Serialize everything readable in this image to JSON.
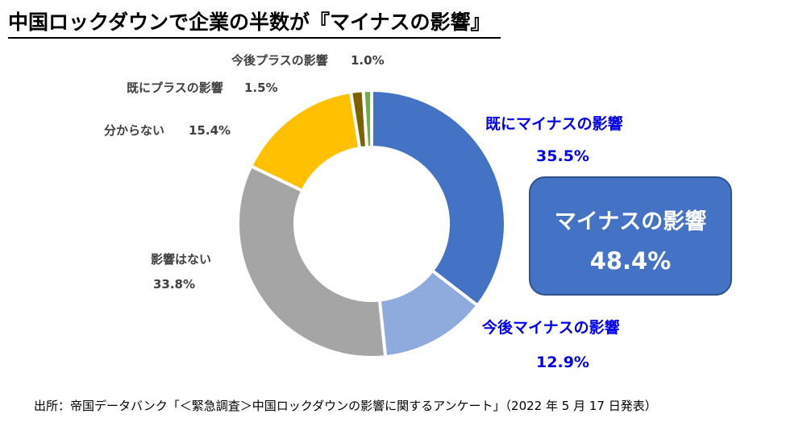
{
  "title": "中国ロックダウンで企業の半数が『マイナスの影響』",
  "chart_data": {
    "type": "pie",
    "style": "donut",
    "slices": [
      {
        "label": "既にマイナスの影響",
        "value": 35.5,
        "value_text": "35.5%",
        "color": "#4472c4"
      },
      {
        "label": "今後マイナスの影響",
        "value": 12.9,
        "value_text": "12.9%",
        "color": "#8faadc"
      },
      {
        "label": "影響はない",
        "value": 33.8,
        "value_text": "33.8%",
        "color": "#a5a5a5"
      },
      {
        "label": "分からない",
        "value": 15.4,
        "value_text": "15.4%",
        "color": "#ffc000"
      },
      {
        "label": "既にプラスの影響",
        "value": 1.5,
        "value_text": "1.5%",
        "color": "#7f6000"
      },
      {
        "label": "今後プラスの影響",
        "value": 1.0,
        "value_text": "1.0%",
        "color": "#70ad47"
      }
    ]
  },
  "summary": {
    "label": "マイナスの影響",
    "value": "48.4%"
  },
  "source": "出所：帝国データバンク「＜緊急調査＞中国ロックダウンの影響に関するアンケート」（2022 年 5 月 17 日発表）"
}
